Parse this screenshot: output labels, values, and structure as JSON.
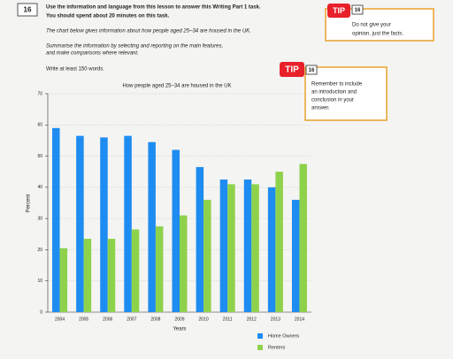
{
  "header": {
    "number": "16",
    "lines": [
      "Use the information and language from this lesson to answer this Writing Part 1 task.",
      "You should spend about 20 minutes on this task."
    ]
  },
  "task": {
    "lines": [
      "The chart below gives information about how people aged 25–34 are housed in the UK.",
      "Summarise the information by selecting and reporting on the main features,",
      "and make comparisons where relevant.",
      "Write at least 150 words."
    ]
  },
  "tips": [
    {
      "badge": "TIP",
      "number": "16",
      "lines": [
        "Do not give your",
        "opinion, just the facts."
      ]
    },
    {
      "badge": "TIP",
      "number": "16",
      "lines": [
        "Remember to include",
        "an introduction and",
        "conclusion in your",
        "answer."
      ]
    }
  ],
  "chart_data": {
    "type": "bar",
    "title": "How people aged 25–34 are housed in the UK",
    "x_label": "Years",
    "y_label": "Percent",
    "categories": [
      "2004",
      "2005",
      "2006",
      "2007",
      "2008",
      "2009",
      "2010",
      "2011",
      "2012",
      "2013",
      "2014"
    ],
    "series": [
      {
        "name": "Home Owners",
        "color": "#1e8cf0",
        "values": [
          59,
          56.5,
          56,
          56.5,
          54.5,
          52,
          46.5,
          42.5,
          42.5,
          40,
          36
        ]
      },
      {
        "name": "Renters",
        "color": "#8ed24c",
        "values": [
          20.5,
          23.5,
          23.5,
          26.5,
          27.5,
          31,
          36,
          41,
          41,
          45,
          47.5
        ]
      }
    ],
    "ylim": [
      0,
      70
    ],
    "yticks": [
      0,
      10,
      20,
      30,
      40,
      50,
      60,
      70
    ],
    "grid": true,
    "legend": "bottom"
  }
}
